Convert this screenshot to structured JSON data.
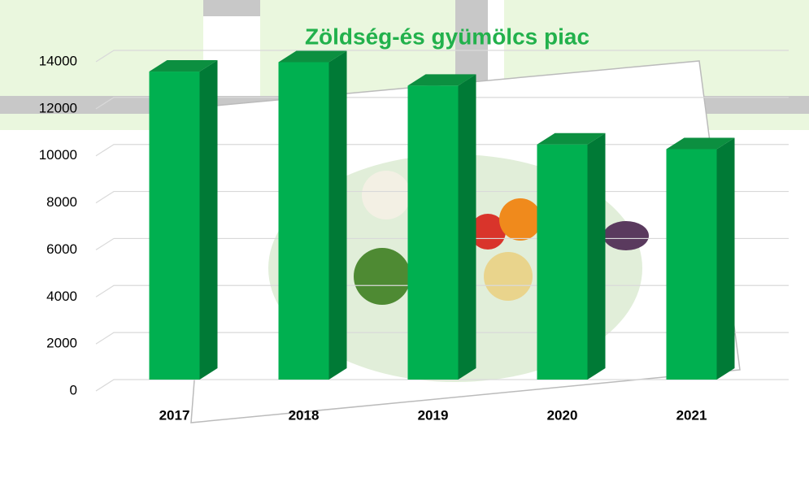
{
  "chart_data": {
    "type": "bar3d",
    "title": "Zöldség-és gyümölcs piac",
    "categories": [
      "2017",
      "2018",
      "2019",
      "2020",
      "2021"
    ],
    "values": [
      13100,
      13500,
      12500,
      10000,
      9800
    ],
    "color": "#00b050",
    "ylim": [
      0,
      14000
    ],
    "yticks": [
      0,
      2000,
      4000,
      6000,
      8000,
      10000,
      12000,
      14000
    ],
    "grid": true
  }
}
